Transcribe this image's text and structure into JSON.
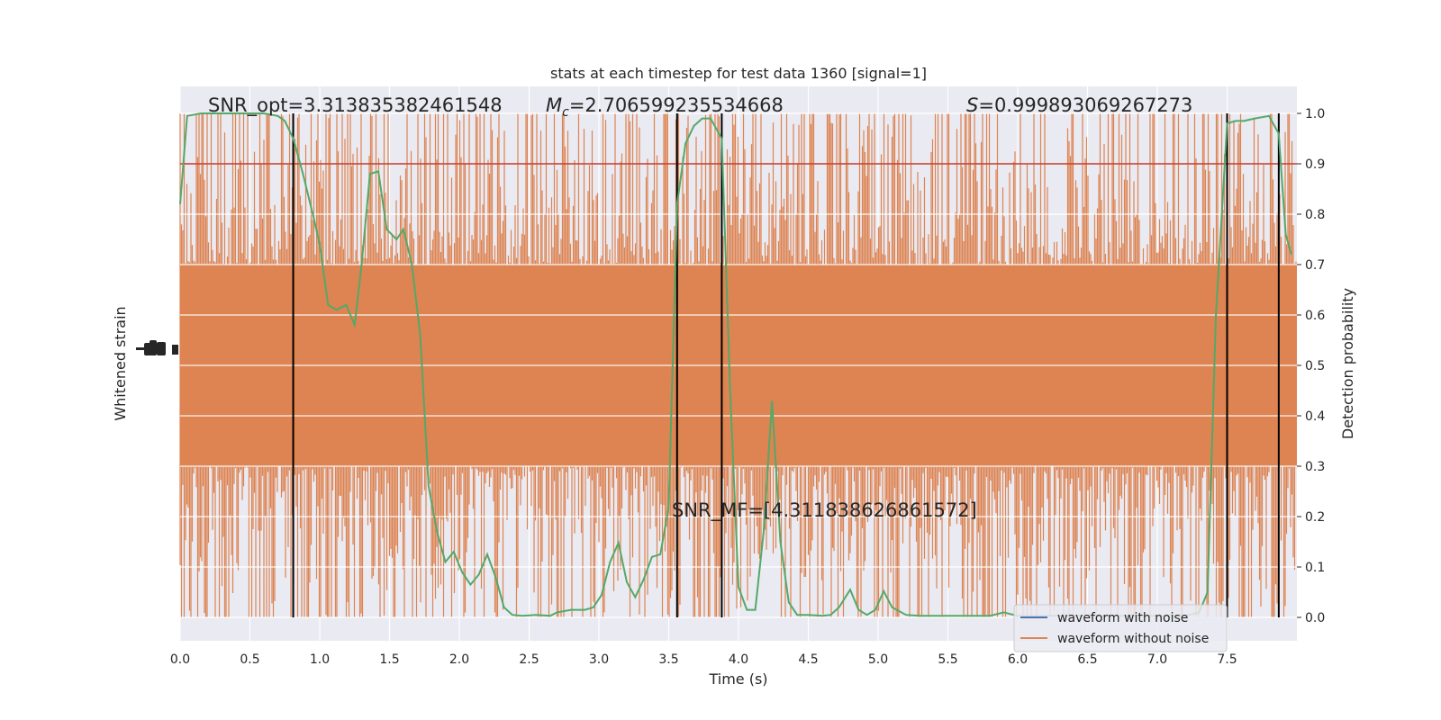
{
  "title": "stats at each timestep for test data 1360 [signal=1]",
  "annotations": {
    "snr_opt": "SNR_opt=3.313835382461548",
    "mc_symbol": "M",
    "mc_sub": "c",
    "mc_value": "=2.706599235534668",
    "s_symbol": "S",
    "s_value": "=0.999893069267273",
    "snr_mf": "SNR_MF=[4.311838626861572]"
  },
  "chart_data": {
    "type": "line",
    "title": "stats at each timestep for test data 1360 [signal=1]",
    "xlabel": "Time (s)",
    "ylabel_left": "Whitened strain",
    "ylabel_right": "Detection probability",
    "xlim": [
      0.0,
      8.0
    ],
    "ylim_right": [
      -0.05,
      1.05
    ],
    "x_ticks": [
      "0.0",
      "0.5",
      "1.0",
      "1.5",
      "2.0",
      "2.5",
      "3.0",
      "3.5",
      "4.0",
      "4.5",
      "5.0",
      "5.5",
      "6.0",
      "6.5",
      "7.0",
      "7.5"
    ],
    "y_ticks_right": [
      "0.0",
      "0.1",
      "0.2",
      "0.3",
      "0.4",
      "0.5",
      "0.6",
      "0.7",
      "0.8",
      "0.9",
      "1.0"
    ],
    "grid": true,
    "legend_position": "lower-right",
    "threshold": 0.9,
    "threshold_color": "#c0392b",
    "vertical_lines": [
      0.81,
      3.56,
      3.88,
      7.5,
      7.87
    ],
    "noise_color": "#dd8452",
    "noise_band": {
      "core_low": 0.3,
      "core_high": 0.7,
      "min": 0.0,
      "max": 1.0
    },
    "series": [
      {
        "name": "waveform with noise",
        "color": "#4c72b0"
      },
      {
        "name": "waveform without noise",
        "color": "#dd8452"
      },
      {
        "name": "",
        "color": "#55a868",
        "x": [
          0.0,
          0.05,
          0.15,
          0.3,
          0.45,
          0.6,
          0.7,
          0.75,
          0.81,
          0.88,
          0.95,
          1.0,
          1.06,
          1.12,
          1.19,
          1.25,
          1.3,
          1.36,
          1.42,
          1.48,
          1.55,
          1.6,
          1.66,
          1.72,
          1.78,
          1.84,
          1.9,
          1.96,
          2.02,
          2.08,
          2.14,
          2.2,
          2.26,
          2.32,
          2.38,
          2.45,
          2.55,
          2.65,
          2.7,
          2.8,
          2.9,
          2.96,
          3.02,
          3.08,
          3.14,
          3.2,
          3.26,
          3.32,
          3.38,
          3.44,
          3.5,
          3.56,
          3.62,
          3.68,
          3.74,
          3.8,
          3.86,
          3.88,
          3.94,
          4.0,
          4.06,
          4.12,
          4.18,
          4.24,
          4.3,
          4.36,
          4.42,
          4.5,
          4.6,
          4.66,
          4.72,
          4.8,
          4.86,
          4.92,
          4.98,
          5.04,
          5.1,
          5.2,
          5.3,
          5.4,
          5.5,
          5.6,
          5.7,
          5.8,
          5.9,
          6.0,
          6.2,
          6.5,
          6.8,
          7.0,
          7.2,
          7.3,
          7.36,
          7.42,
          7.5,
          7.56,
          7.62,
          7.7,
          7.8,
          7.87,
          7.92,
          7.96
        ],
        "y": [
          0.82,
          0.995,
          1.0,
          1.0,
          1.0,
          1.0,
          0.995,
          0.985,
          0.95,
          0.88,
          0.8,
          0.74,
          0.62,
          0.61,
          0.62,
          0.58,
          0.7,
          0.88,
          0.885,
          0.77,
          0.75,
          0.77,
          0.7,
          0.56,
          0.26,
          0.17,
          0.11,
          0.13,
          0.09,
          0.065,
          0.085,
          0.125,
          0.08,
          0.02,
          0.005,
          0.003,
          0.005,
          0.003,
          0.01,
          0.015,
          0.015,
          0.02,
          0.045,
          0.11,
          0.148,
          0.07,
          0.04,
          0.075,
          0.12,
          0.125,
          0.22,
          0.82,
          0.94,
          0.975,
          0.99,
          0.99,
          0.96,
          0.95,
          0.45,
          0.06,
          0.015,
          0.015,
          0.17,
          0.43,
          0.15,
          0.03,
          0.005,
          0.005,
          0.003,
          0.005,
          0.02,
          0.055,
          0.015,
          0.005,
          0.015,
          0.052,
          0.02,
          0.005,
          0.003,
          0.003,
          0.003,
          0.003,
          0.003,
          0.003,
          0.01,
          0.003,
          0.003,
          0.003,
          0.003,
          0.003,
          0.003,
          0.01,
          0.05,
          0.6,
          0.98,
          0.985,
          0.985,
          0.99,
          0.995,
          0.96,
          0.76,
          0.72
        ]
      }
    ]
  }
}
